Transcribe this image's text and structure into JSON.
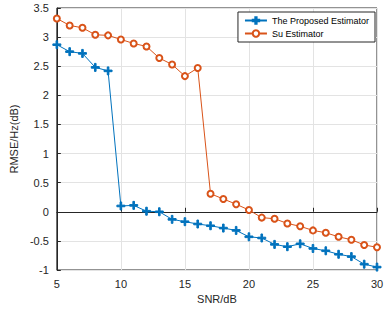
{
  "chart_data": {
    "type": "line",
    "x_label": "SNR/dB",
    "y_label": "RMSE/Hz(dB)",
    "x": [
      5,
      6,
      7,
      8,
      9,
      10,
      11,
      12,
      13,
      14,
      15,
      16,
      17,
      18,
      19,
      20,
      21,
      22,
      23,
      24,
      25,
      26,
      27,
      28,
      29,
      30
    ],
    "series": [
      {
        "name": "The Proposed Estimator",
        "color": "#0072bd",
        "marker": "plus",
        "line_style": "solid",
        "values": [
          2.87,
          2.75,
          2.72,
          2.48,
          2.42,
          0.1,
          0.11,
          0.01,
          0.0,
          -0.13,
          -0.17,
          -0.21,
          -0.24,
          -0.28,
          -0.32,
          -0.43,
          -0.45,
          -0.56,
          -0.6,
          -0.55,
          -0.63,
          -0.67,
          -0.73,
          -0.77,
          -0.9,
          -0.95
        ]
      },
      {
        "name": "Su Estimator",
        "color": "#d95319",
        "marker": "circle",
        "line_style": "solid",
        "values": [
          3.32,
          3.2,
          3.16,
          3.04,
          3.03,
          2.96,
          2.89,
          2.84,
          2.64,
          2.53,
          2.33,
          2.47,
          0.31,
          0.22,
          0.13,
          0.03,
          -0.1,
          -0.12,
          -0.2,
          -0.25,
          -0.32,
          -0.36,
          -0.43,
          -0.48,
          -0.57,
          -0.61
        ]
      }
    ],
    "xlim": [
      5,
      30
    ],
    "xticks": [
      5,
      10,
      15,
      20,
      25,
      30
    ],
    "ylim": [
      -1,
      3.5
    ],
    "yticks": [
      -1,
      -0.5,
      0,
      0.5,
      1,
      1.5,
      2,
      2.5,
      3,
      3.5
    ],
    "grid": true,
    "legend": "upper right"
  }
}
